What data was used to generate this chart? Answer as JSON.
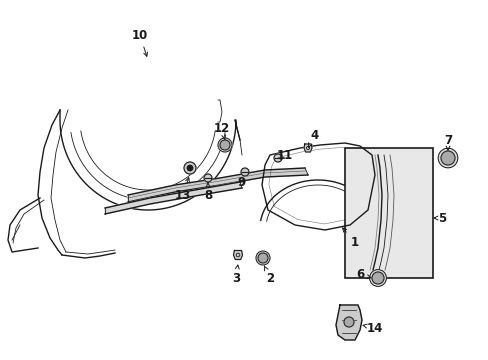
{
  "bg_color": "#ffffff",
  "line_color": "#1a1a1a",
  "box_fill": "#e8e8e8",
  "fig_width": 4.89,
  "fig_height": 3.6,
  "dpi": 100
}
